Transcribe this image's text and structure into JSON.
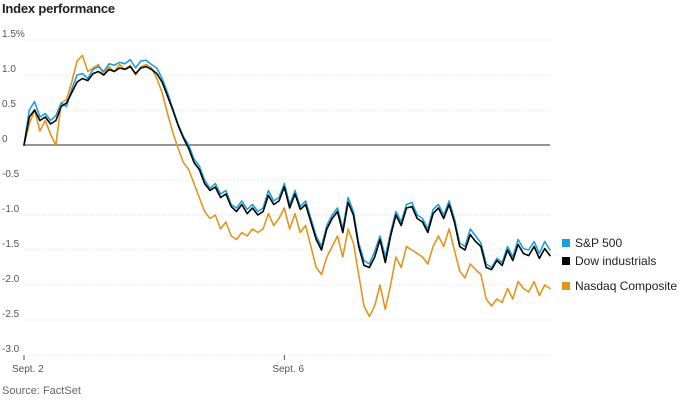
{
  "chart_data": {
    "type": "line",
    "title": "Index performance",
    "source": "Source: FactSet",
    "xlabel": "",
    "ylabel": "",
    "ylim": [
      -3.0,
      1.5
    ],
    "y_ticks": [
      1.5,
      1.0,
      0.5,
      0,
      -0.5,
      -1.0,
      -1.5,
      -2.0,
      -2.5,
      -3.0
    ],
    "y_tick_labels": [
      "1.5%",
      "1.0",
      "0.5",
      "0",
      "-0.5",
      "-1.0",
      "-1.5",
      "-2.0",
      "-2.5",
      "-3.0"
    ],
    "x_ticks": [
      0,
      49
    ],
    "x_tick_labels": [
      "Sept. 2",
      "Sept. 6"
    ],
    "xlim": [
      0,
      99
    ],
    "grid": true,
    "legend_position": "right",
    "series": [
      {
        "name": "S&P 500",
        "color": "#1f9fd9",
        "values": [
          0.0,
          0.5,
          0.62,
          0.4,
          0.45,
          0.35,
          0.42,
          0.6,
          0.55,
          0.8,
          1.0,
          1.02,
          0.95,
          1.08,
          1.12,
          1.05,
          1.16,
          1.14,
          1.18,
          1.16,
          1.22,
          1.1,
          1.2,
          1.21,
          1.15,
          1.1,
          0.95,
          0.75,
          0.52,
          0.3,
          0.12,
          0.0,
          -0.2,
          -0.3,
          -0.5,
          -0.62,
          -0.55,
          -0.7,
          -0.65,
          -0.85,
          -0.9,
          -0.8,
          -0.92,
          -0.85,
          -0.95,
          -0.9,
          -0.65,
          -0.8,
          -0.75,
          -0.55,
          -0.85,
          -0.65,
          -0.88,
          -0.8,
          -1.05,
          -1.3,
          -1.45,
          -1.15,
          -1.0,
          -0.9,
          -1.2,
          -0.75,
          -0.95,
          -1.4,
          -1.65,
          -1.7,
          -1.52,
          -1.3,
          -1.6,
          -1.25,
          -0.95,
          -1.1,
          -0.85,
          -0.82,
          -1.0,
          -1.05,
          -1.2,
          -0.92,
          -0.85,
          -1.0,
          -0.8,
          -1.05,
          -1.4,
          -1.45,
          -1.2,
          -1.3,
          -1.4,
          -1.7,
          -1.75,
          -1.62,
          -1.68,
          -1.45,
          -1.6,
          -1.35,
          -1.48,
          -1.5,
          -1.38,
          -1.55,
          -1.38,
          -1.5
        ],
        "values_note": ""
      },
      {
        "name": "Dow industrials",
        "color": "#000000",
        "values": [
          0.0,
          0.4,
          0.5,
          0.35,
          0.4,
          0.3,
          0.35,
          0.55,
          0.6,
          0.75,
          0.9,
          0.95,
          0.92,
          1.02,
          1.05,
          1.0,
          1.08,
          1.05,
          1.1,
          1.08,
          1.12,
          1.02,
          1.1,
          1.12,
          1.08,
          1.02,
          0.9,
          0.7,
          0.5,
          0.28,
          0.1,
          -0.05,
          -0.25,
          -0.35,
          -0.55,
          -0.65,
          -0.6,
          -0.75,
          -0.7,
          -0.88,
          -0.95,
          -0.85,
          -0.98,
          -0.9,
          -1.0,
          -0.95,
          -0.72,
          -0.85,
          -0.8,
          -0.6,
          -0.9,
          -0.7,
          -0.92,
          -0.85,
          -1.1,
          -1.35,
          -1.5,
          -1.2,
          -1.05,
          -0.95,
          -1.25,
          -0.82,
          -1.0,
          -1.45,
          -1.72,
          -1.75,
          -1.6,
          -1.35,
          -1.68,
          -1.3,
          -1.0,
          -1.15,
          -0.9,
          -0.88,
          -1.05,
          -1.1,
          -1.25,
          -0.98,
          -0.9,
          -1.05,
          -0.85,
          -1.1,
          -1.45,
          -1.5,
          -1.28,
          -1.38,
          -1.45,
          -1.75,
          -1.78,
          -1.65,
          -1.72,
          -1.5,
          -1.65,
          -1.42,
          -1.55,
          -1.58,
          -1.45,
          -1.62,
          -1.48,
          -1.58
        ]
      },
      {
        "name": "Nasdaq Composite",
        "color": "#e0961e",
        "values": [
          0.0,
          0.3,
          0.5,
          0.2,
          0.35,
          0.15,
          0.0,
          0.6,
          0.65,
          0.9,
          1.2,
          1.28,
          1.05,
          1.1,
          1.15,
          1.0,
          1.12,
          1.05,
          1.15,
          1.08,
          1.14,
          1.0,
          1.12,
          1.15,
          1.1,
          0.95,
          0.75,
          0.45,
          0.18,
          -0.05,
          -0.25,
          -0.35,
          -0.55,
          -0.75,
          -0.95,
          -1.05,
          -1.0,
          -1.2,
          -1.1,
          -1.3,
          -1.35,
          -1.25,
          -1.3,
          -1.2,
          -1.25,
          -1.2,
          -0.98,
          -1.15,
          -1.05,
          -0.9,
          -1.2,
          -0.98,
          -1.25,
          -1.15,
          -1.45,
          -1.75,
          -1.85,
          -1.6,
          -1.45,
          -1.3,
          -1.6,
          -1.2,
          -1.4,
          -1.85,
          -2.3,
          -2.45,
          -2.3,
          -2.0,
          -2.35,
          -2.0,
          -1.6,
          -1.75,
          -1.45,
          -1.5,
          -1.55,
          -1.6,
          -1.7,
          -1.45,
          -1.3,
          -1.45,
          -1.2,
          -1.5,
          -1.8,
          -1.9,
          -1.7,
          -1.78,
          -1.85,
          -2.2,
          -2.3,
          -2.2,
          -2.25,
          -2.05,
          -2.2,
          -1.95,
          -2.05,
          -2.1,
          -1.95,
          -2.15,
          -2.0,
          -2.05
        ]
      }
    ]
  }
}
